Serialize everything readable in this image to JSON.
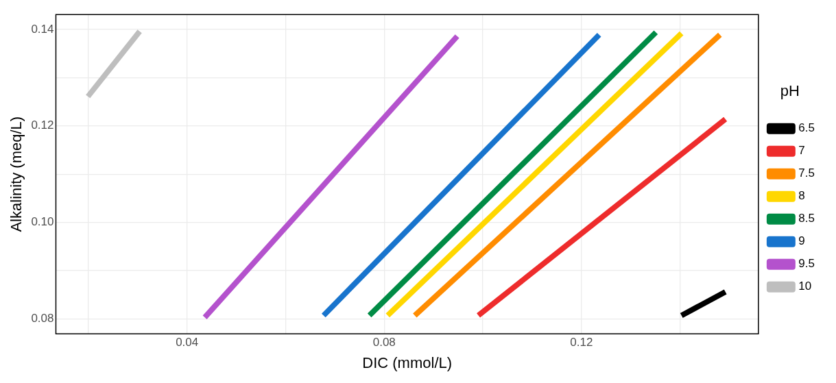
{
  "chart_data": {
    "type": "line",
    "xlabel": "DIC (mmol/L)",
    "ylabel": "Alkalinity (meq/L)",
    "legend_title": "pH",
    "legend": "right",
    "grid": true,
    "marker": "none",
    "line_style": "solid",
    "xlim": [
      0.0134,
      0.1559
    ],
    "ylim": [
      0.0769,
      0.1431
    ],
    "xticks": [
      {
        "value": 0.02,
        "label": null
      },
      0.04,
      {
        "value": 0.06,
        "label": null
      },
      0.08,
      {
        "value": 0.1,
        "label": null
      },
      0.12,
      {
        "value": 0.14,
        "label": null
      }
    ],
    "yticks": [
      0.08,
      {
        "value": 0.09,
        "label": null
      },
      {
        "value": 0.1,
        "label": "0.10"
      },
      {
        "value": 0.11,
        "label": null
      },
      0.12,
      {
        "value": 0.13,
        "label": null
      },
      0.14
    ],
    "series": [
      {
        "name": "6.5",
        "color": "#000000",
        "x": [
          0.1403,
          0.1492
        ],
        "values": [
          0.0807,
          0.0856
        ]
      },
      {
        "name": "7",
        "color": "#ee2c2c",
        "x": [
          0.0991,
          0.1492
        ],
        "values": [
          0.0807,
          0.1214
        ]
      },
      {
        "name": "7.5",
        "color": "#ff8c00",
        "x": [
          0.0862,
          0.1481
        ],
        "values": [
          0.0807,
          0.1389
        ]
      },
      {
        "name": "8",
        "color": "#ffd700",
        "x": [
          0.0807,
          0.1403
        ],
        "values": [
          0.0807,
          0.1392
        ]
      },
      {
        "name": "8.5",
        "color": "#008b45",
        "x": [
          0.077,
          0.1351
        ],
        "values": [
          0.0807,
          0.1394
        ]
      },
      {
        "name": "9",
        "color": "#1874cd",
        "x": [
          0.0677,
          0.1236
        ],
        "values": [
          0.0807,
          0.1389
        ]
      },
      {
        "name": "9.5",
        "color": "#b452cd",
        "x": [
          0.0436,
          0.0948
        ],
        "values": [
          0.0803,
          0.1386
        ]
      },
      {
        "name": "10",
        "color": "#bebebe",
        "x": [
          0.0199,
          0.0304
        ],
        "values": [
          0.1261,
          0.1396
        ]
      }
    ]
  }
}
